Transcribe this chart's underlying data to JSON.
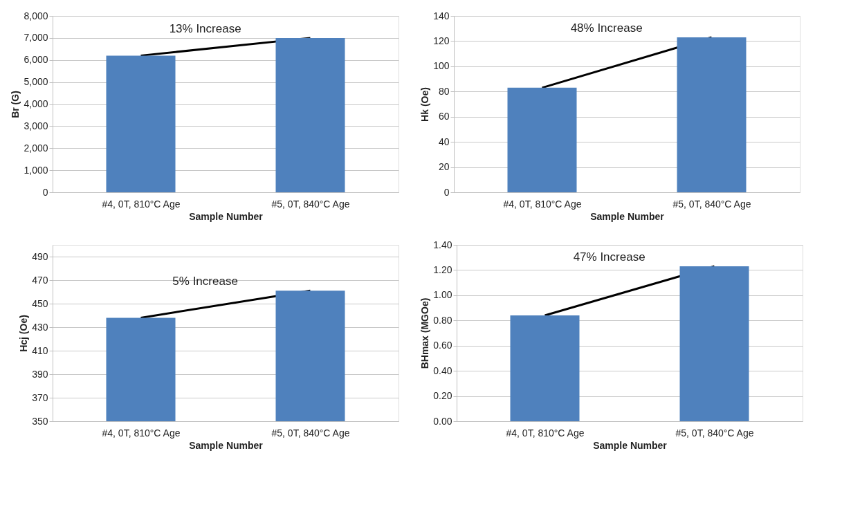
{
  "chart_data": [
    {
      "type": "bar",
      "categories": [
        "#4, 0T, 810°C Age",
        "#5, 0T, 840°C Age"
      ],
      "values": [
        6200,
        7000
      ],
      "color": "#4f81bd",
      "xlabel": "Sample Number",
      "ylabel": "Br (G)",
      "ylim": [
        0,
        8000
      ],
      "yticks": [
        {
          "value": 0,
          "label": "0"
        },
        {
          "value": 1000,
          "label": "1,000"
        },
        {
          "value": 2000,
          "label": "2,000"
        },
        {
          "value": 3000,
          "label": "3,000"
        },
        {
          "value": 4000,
          "label": "4,000"
        },
        {
          "value": 5000,
          "label": "5,000"
        },
        {
          "value": 6000,
          "label": "6,000"
        },
        {
          "value": 7000,
          "label": "7,000"
        },
        {
          "value": 8000,
          "label": "8,000"
        }
      ],
      "grid": "y",
      "annotations": [
        "13% Increase"
      ]
    },
    {
      "type": "bar",
      "categories": [
        "#4, 0T, 810°C Age",
        "#5, 0T, 840°C Age"
      ],
      "values": [
        83,
        123
      ],
      "color": "#4f81bd",
      "xlabel": "Sample Number",
      "ylabel": "Hk (Oe)",
      "ylim": [
        0,
        140
      ],
      "yticks": [
        0,
        20,
        40,
        60,
        80,
        100,
        120,
        140
      ],
      "grid": "y",
      "annotations": [
        "48% Increase"
      ]
    },
    {
      "type": "bar",
      "categories": [
        "#4, 0T, 810°C Age",
        "#5, 0T, 840°C Age"
      ],
      "values": [
        438,
        461
      ],
      "color": "#4f81bd",
      "xlabel": "Sample Number",
      "ylabel": "Hcj (Oe)",
      "ylim": [
        350,
        500
      ],
      "yticks": [
        350,
        370,
        390,
        410,
        430,
        450,
        470,
        490
      ],
      "grid": "y",
      "annotations": [
        "5% Increase"
      ]
    },
    {
      "type": "bar",
      "categories": [
        "#4, 0T, 810°C Age",
        "#5, 0T, 840°C Age"
      ],
      "values": [
        0.84,
        1.23
      ],
      "color": "#4f81bd",
      "xlabel": "Sample Number",
      "ylabel": "BHmax (MGOe)",
      "ylim": [
        0,
        1.4
      ],
      "yticks": [
        {
          "value": 0,
          "label": "0.00"
        },
        {
          "value": 0.2,
          "label": "0.20"
        },
        {
          "value": 0.4,
          "label": "0.40"
        },
        {
          "value": 0.6,
          "label": "0.60"
        },
        {
          "value": 0.8,
          "label": "0.80"
        },
        {
          "value": 1.0,
          "label": "1.00"
        },
        {
          "value": 1.2,
          "label": "1.20"
        },
        {
          "value": 1.4,
          "label": "1.40"
        }
      ],
      "grid": "y",
      "annotations": [
        "47% Increase"
      ]
    }
  ]
}
